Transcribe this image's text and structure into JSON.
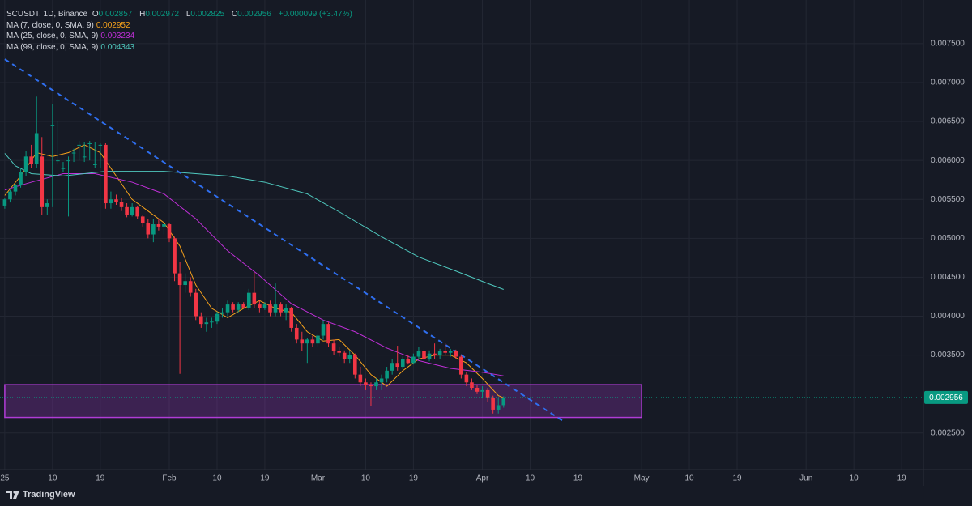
{
  "chart_data": {
    "type": "candlestick",
    "title": "SCUSDT, 1D, Binance",
    "ohlc_labels": [
      "O",
      "H",
      "L",
      "C"
    ],
    "change": "+0.000099 (+3.47%)",
    "up_color": "#089981",
    "down_color": "#f23645",
    "x": [
      0,
      1,
      2,
      3,
      4,
      5,
      6,
      7,
      8,
      9,
      10,
      11,
      12,
      13,
      14,
      15,
      16,
      17,
      18,
      19,
      20,
      21,
      22,
      23,
      24,
      25,
      26,
      27,
      28,
      29,
      30,
      31,
      32,
      33,
      34,
      35,
      36,
      37,
      38,
      39,
      40,
      41,
      42,
      43,
      44,
      45,
      46,
      47,
      48,
      49,
      50,
      51,
      52,
      53,
      54,
      55,
      56,
      57,
      58,
      59,
      60,
      61,
      62,
      63,
      64,
      65,
      66,
      67,
      68,
      69,
      70,
      71,
      72,
      73,
      74,
      75,
      76,
      77,
      78,
      79,
      80,
      81,
      82,
      83,
      84,
      85,
      86,
      87,
      88,
      89,
      90,
      91,
      92,
      93,
      94
    ],
    "open": [
      0.00542,
      0.0055,
      0.0056,
      0.00568,
      0.00585,
      0.00605,
      0.00595,
      0.00605,
      0.0054,
      0.00645,
      0.006,
      0.0059,
      0.006,
      0.0061,
      0.0062,
      0.00605,
      0.00622,
      0.00595,
      0.0062,
      0.0062,
      0.00545,
      0.0055,
      0.00547,
      0.0054,
      0.0053,
      0.0054,
      0.00528,
      0.0052,
      0.00505,
      0.00518,
      0.00515,
      0.00518,
      0.005,
      0.00455,
      0.0044,
      0.00445,
      0.0043,
      0.004,
      0.0039,
      0.00392,
      0.00393,
      0.00403,
      0.00405,
      0.00415,
      0.00408,
      0.00416,
      0.00411,
      0.0043,
      0.00415,
      0.0041,
      0.00415,
      0.00405,
      0.00415,
      0.00405,
      0.0041,
      0.00385,
      0.0037,
      0.00365,
      0.0037,
      0.00365,
      0.00375,
      0.0039,
      0.00365,
      0.00355,
      0.00353,
      0.00345,
      0.0035,
      0.00325,
      0.00315,
      0.00312,
      0.0031,
      0.00315,
      0.0032,
      0.0033,
      0.0034,
      0.00335,
      0.00345,
      0.0034,
      0.00348,
      0.00355,
      0.00345,
      0.00352,
      0.0035,
      0.00355,
      0.00353,
      0.00355,
      0.00348,
      0.00325,
      0.00315,
      0.00308,
      0.00303,
      0.00305,
      0.00295,
      0.0028,
      0.002857
    ],
    "high": [
      0.00552,
      0.00562,
      0.0057,
      0.0059,
      0.00612,
      0.0062,
      0.00682,
      0.0063,
      0.0055,
      0.00672,
      0.0065,
      0.00598,
      0.00605,
      0.00615,
      0.00625,
      0.00623,
      0.00625,
      0.00623,
      0.00622,
      0.00622,
      0.0056,
      0.00556,
      0.00552,
      0.00545,
      0.00545,
      0.00542,
      0.0053,
      0.00525,
      0.00525,
      0.00525,
      0.00522,
      0.0052,
      0.00502,
      0.0047,
      0.00455,
      0.0045,
      0.00435,
      0.00405,
      0.00398,
      0.00398,
      0.00406,
      0.0041,
      0.0042,
      0.00418,
      0.00418,
      0.00418,
      0.00435,
      0.00456,
      0.0042,
      0.00418,
      0.0042,
      0.00442,
      0.00418,
      0.00415,
      0.00412,
      0.0039,
      0.0038,
      0.00372,
      0.00375,
      0.00378,
      0.00395,
      0.00392,
      0.0037,
      0.0036,
      0.00356,
      0.00355,
      0.00352,
      0.00335,
      0.0032,
      0.00315,
      0.0032,
      0.00325,
      0.00335,
      0.00345,
      0.00362,
      0.00348,
      0.0035,
      0.00352,
      0.0036,
      0.00358,
      0.00356,
      0.00365,
      0.00358,
      0.00365,
      0.00358,
      0.00357,
      0.0035,
      0.00328,
      0.0032,
      0.00312,
      0.0031,
      0.00308,
      0.00298,
      0.00295,
      0.002972
    ],
    "low": [
      0.00538,
      0.00546,
      0.00555,
      0.00565,
      0.0058,
      0.0059,
      0.0059,
      0.0053,
      0.0053,
      0.0054,
      0.00595,
      0.00585,
      0.00528,
      0.00598,
      0.006,
      0.00598,
      0.006,
      0.0059,
      0.0059,
      0.00538,
      0.00538,
      0.00543,
      0.00535,
      0.00527,
      0.00528,
      0.00525,
      0.00515,
      0.005,
      0.00495,
      0.0051,
      0.00505,
      0.00495,
      0.00445,
      0.00326,
      0.0043,
      0.00425,
      0.00395,
      0.00385,
      0.0038,
      0.00385,
      0.0039,
      0.00398,
      0.004,
      0.00405,
      0.00405,
      0.0041,
      0.00408,
      0.0041,
      0.00405,
      0.00408,
      0.004,
      0.004,
      0.004,
      0.00395,
      0.0038,
      0.00365,
      0.00355,
      0.0034,
      0.0036,
      0.0036,
      0.0037,
      0.0036,
      0.0035,
      0.00348,
      0.0034,
      0.0034,
      0.0032,
      0.0031,
      0.00305,
      0.00285,
      0.00305,
      0.00305,
      0.00315,
      0.00325,
      0.0033,
      0.00332,
      0.00338,
      0.00338,
      0.00345,
      0.0034,
      0.00342,
      0.00345,
      0.00345,
      0.0035,
      0.00348,
      0.00345,
      0.0032,
      0.0031,
      0.00305,
      0.003,
      0.00295,
      0.0029,
      0.00275,
      0.00275,
      0.002825
    ],
    "close": [
      0.0055,
      0.0056,
      0.00568,
      0.00585,
      0.00605,
      0.00595,
      0.00635,
      0.0054,
      0.00545,
      0.00645,
      0.006,
      0.0059,
      0.006,
      0.0061,
      0.0062,
      0.00605,
      0.00622,
      0.00595,
      0.0062,
      0.00545,
      0.0055,
      0.00547,
      0.0054,
      0.0053,
      0.0054,
      0.00528,
      0.0052,
      0.00505,
      0.00518,
      0.00515,
      0.00518,
      0.005,
      0.00455,
      0.0044,
      0.00445,
      0.0043,
      0.004,
      0.0039,
      0.00392,
      0.00393,
      0.00403,
      0.00405,
      0.00415,
      0.00408,
      0.00416,
      0.00411,
      0.0043,
      0.00415,
      0.0041,
      0.00415,
      0.00405,
      0.00415,
      0.00405,
      0.0041,
      0.00385,
      0.0037,
      0.00365,
      0.0037,
      0.00365,
      0.00375,
      0.0039,
      0.00365,
      0.00355,
      0.00353,
      0.00345,
      0.0035,
      0.00325,
      0.00315,
      0.00312,
      0.0031,
      0.00315,
      0.0032,
      0.0033,
      0.0034,
      0.00335,
      0.00345,
      0.0034,
      0.00348,
      0.00355,
      0.00345,
      0.00352,
      0.0035,
      0.00355,
      0.00353,
      0.00355,
      0.00348,
      0.00325,
      0.00315,
      0.00308,
      0.00303,
      0.00305,
      0.00295,
      0.0028,
      0.002857,
      0.002956
    ],
    "series": [
      {
        "name": "MA (7, close, 0, SMA, 9)",
        "color": "#f7a21b",
        "x": [
          0,
          3,
          6,
          9,
          12,
          15,
          18,
          21,
          24,
          27,
          30,
          33,
          36,
          39,
          42,
          45,
          48,
          51,
          54,
          57,
          60,
          63,
          66,
          69,
          72,
          75,
          78,
          81,
          84,
          87,
          90,
          93,
          94
        ],
        "values": [
          0.00555,
          0.0058,
          0.0061,
          0.00605,
          0.0061,
          0.0062,
          0.0061,
          0.0058,
          0.0055,
          0.00535,
          0.0052,
          0.0049,
          0.0044,
          0.0041,
          0.00398,
          0.0041,
          0.0042,
          0.0041,
          0.00405,
          0.0038,
          0.00368,
          0.0037,
          0.0035,
          0.00325,
          0.0031,
          0.0033,
          0.00345,
          0.0035,
          0.0035,
          0.0034,
          0.0032,
          0.00298,
          0.002952
        ]
      },
      {
        "name": "MA (25, close, 0, SMA, 9)",
        "color": "#c02fd8",
        "x": [
          0,
          5,
          11,
          17,
          24,
          30,
          36,
          42,
          48,
          54,
          60,
          66,
          72,
          78,
          84,
          90,
          94
        ],
        "values": [
          0.00562,
          0.00572,
          0.00583,
          0.00583,
          0.00572,
          0.00557,
          0.00525,
          0.00484,
          0.00452,
          0.00416,
          0.00395,
          0.0038,
          0.00359,
          0.00343,
          0.00333,
          0.00328,
          0.003234
        ]
      },
      {
        "name": "MA (99, close, 0, SMA, 9)",
        "color": "#4fc8be",
        "x": [
          0,
          2,
          5,
          11,
          19,
          30,
          36,
          42,
          49,
          57,
          63,
          71,
          78,
          85,
          91,
          94
        ],
        "values": [
          0.00609,
          0.00593,
          0.00583,
          0.0058,
          0.00586,
          0.00586,
          0.00583,
          0.0058,
          0.00572,
          0.00557,
          0.00534,
          0.00502,
          0.00476,
          0.00458,
          0.00442,
          0.004343
        ]
      }
    ],
    "trendline": {
      "color": "#2f6ff0",
      "x": [
        0,
        105.5
      ],
      "y": [
        0.0073,
        0.00264
      ]
    },
    "zone": {
      "color": "#b03cd6",
      "x": [
        0,
        120
      ],
      "y": [
        0.0027,
        0.00312
      ]
    },
    "xlim": [
      -0.9,
      173.1
    ],
    "ylim": [
      0.00203,
      0.00806
    ],
    "xticks": [
      {
        "value": 0,
        "label": "25"
      },
      {
        "value": 9,
        "label": "10"
      },
      {
        "value": 18,
        "label": "19"
      },
      {
        "value": 31,
        "label": "Feb"
      },
      {
        "value": 40,
        "label": "10"
      },
      {
        "value": 49,
        "label": "19"
      },
      {
        "value": 59,
        "label": "Mar"
      },
      {
        "value": 68,
        "label": "10"
      },
      {
        "value": 77,
        "label": "19"
      },
      {
        "value": 90,
        "label": "Apr"
      },
      {
        "value": 99,
        "label": "10"
      },
      {
        "value": 108,
        "label": "19"
      },
      {
        "value": 120,
        "label": "May"
      },
      {
        "value": 129,
        "label": "10"
      },
      {
        "value": 138,
        "label": "19"
      },
      {
        "value": 151,
        "label": "Jun"
      },
      {
        "value": 160,
        "label": "10"
      },
      {
        "value": 169,
        "label": "19"
      }
    ],
    "yticks": [
      {
        "value": 0.0025,
        "label": "0.002500"
      },
      {
        "value": 0.0035,
        "label": "0.003500"
      },
      {
        "value": 0.004,
        "label": "0.004000"
      },
      {
        "value": 0.0045,
        "label": "0.004500"
      },
      {
        "value": 0.005,
        "label": "0.005000"
      },
      {
        "value": 0.0055,
        "label": "0.005500"
      },
      {
        "value": 0.006,
        "label": "0.006000"
      },
      {
        "value": 0.0065,
        "label": "0.006500"
      },
      {
        "value": 0.007,
        "label": "0.007000"
      },
      {
        "value": 0.0075,
        "label": "0.007500"
      }
    ],
    "grid": true
  },
  "brand": "TradingView"
}
